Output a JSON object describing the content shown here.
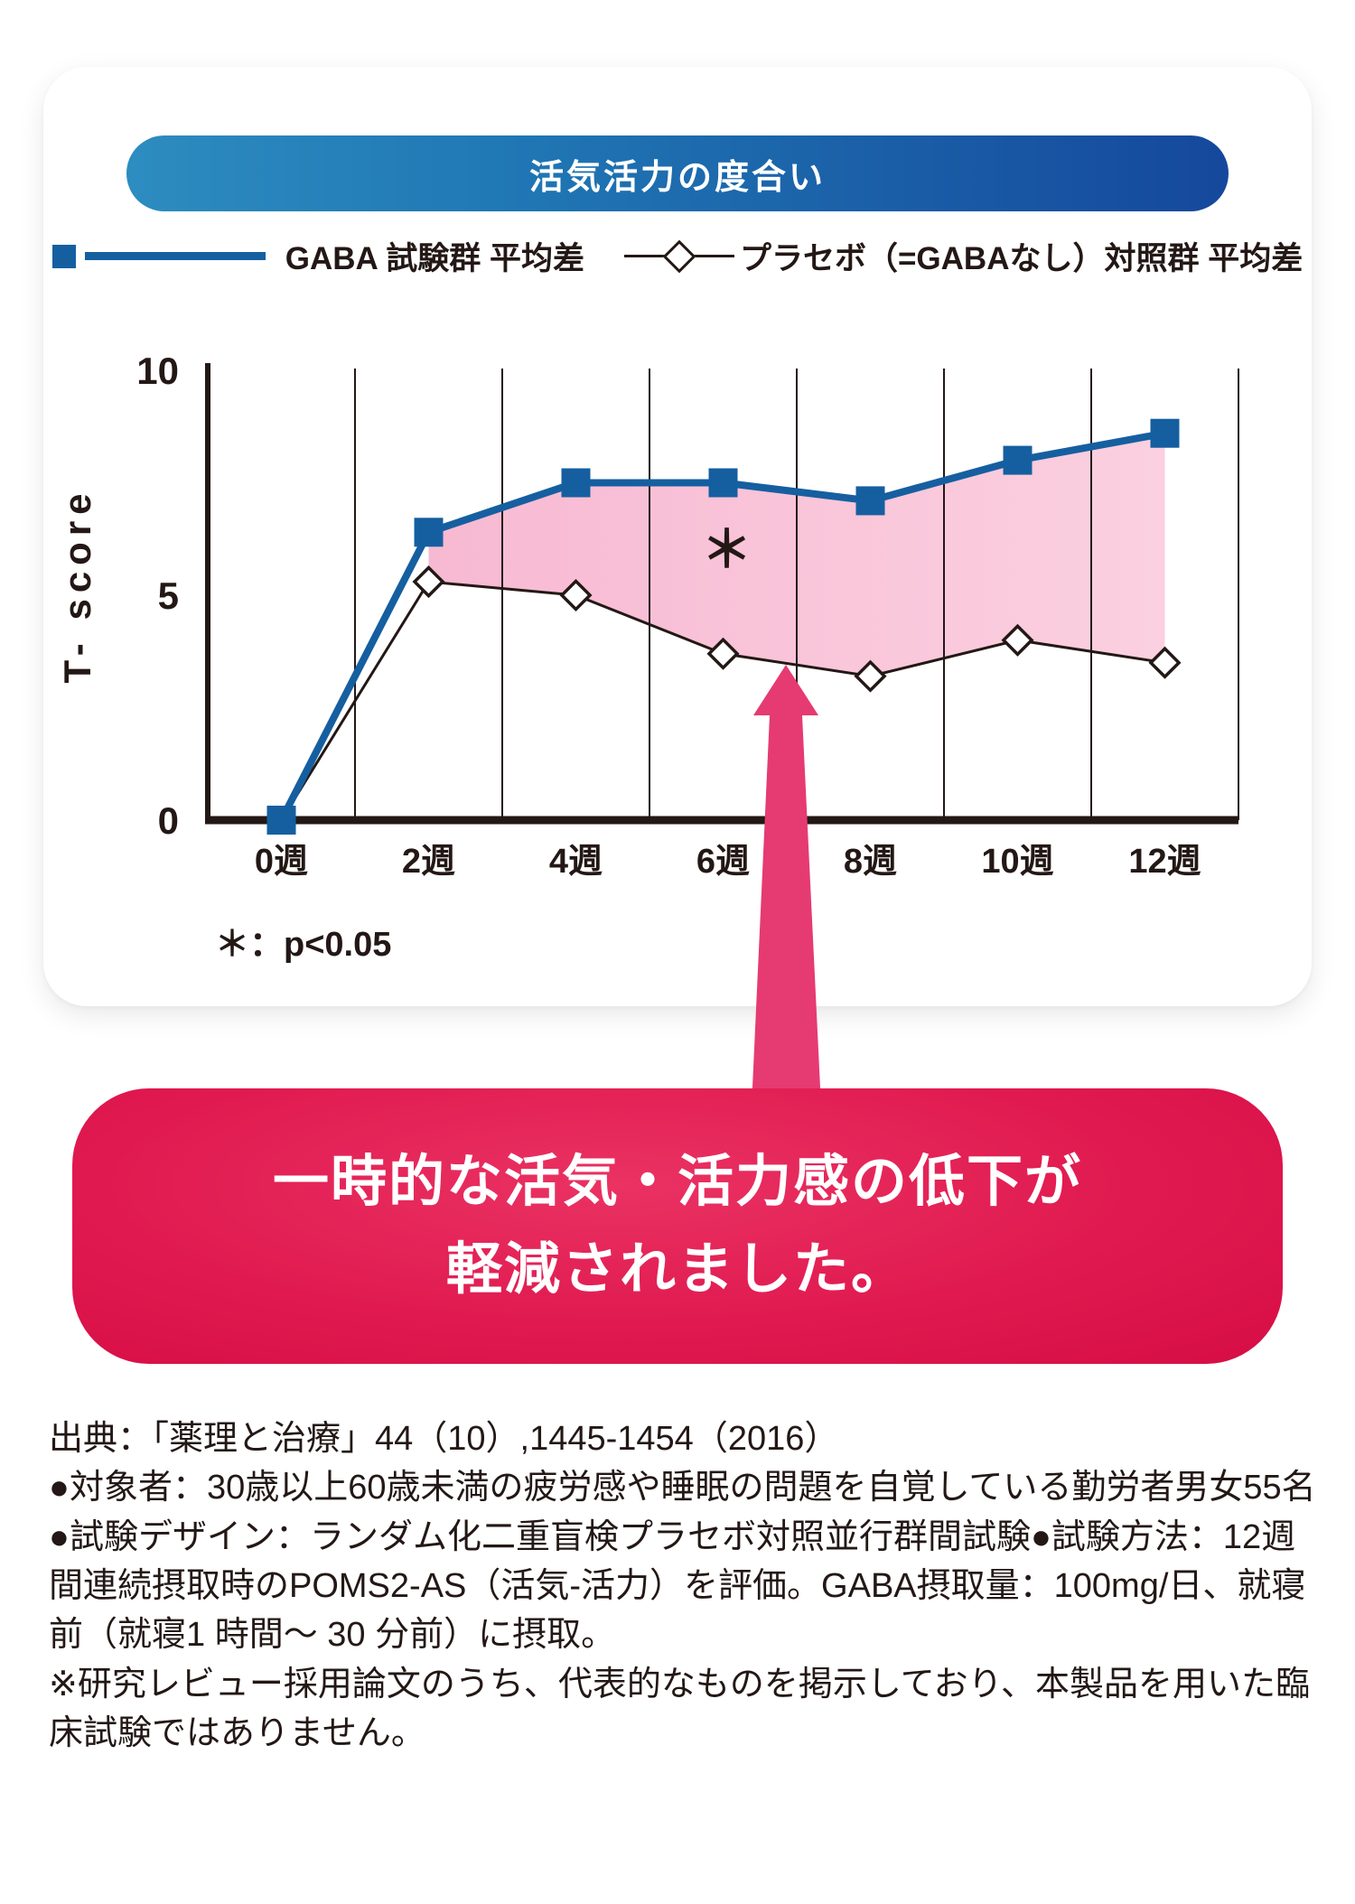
{
  "header": {
    "title": "活気活力の度合い"
  },
  "legend": {
    "series1_label": "GABA 試験群 平均差",
    "series2_label": "プラセボ（=GABAなし）対照群 平均差"
  },
  "chart_data": {
    "type": "line",
    "categories": [
      "0週",
      "2週",
      "4週",
      "6週",
      "8週",
      "10週",
      "12週"
    ],
    "series": [
      {
        "name": "GABA 試験群 平均差",
        "values": [
          0,
          6.4,
          7.5,
          7.5,
          7.1,
          8.0,
          8.6
        ],
        "color": "#155fa0",
        "marker": "square-filled"
      },
      {
        "name": "プラセボ（=GABAなし）対照群 平均差",
        "values": [
          0,
          5.3,
          5.0,
          3.7,
          3.2,
          4.0,
          3.5
        ],
        "color": "#231815",
        "marker": "diamond-open"
      }
    ],
    "ylabel": "T- score",
    "yticks": [
      0,
      5,
      10
    ],
    "ylim": [
      0,
      10
    ],
    "grid": "vertical-between-categories",
    "fill_between_series": true,
    "fill_color_start": "#f7b9d2",
    "fill_color_end": "#fbd0e0",
    "axis_color": "#231815",
    "annotation": {
      "symbol": "＊",
      "at_category": "6週",
      "meaning": "p<0.05"
    }
  },
  "pnote": "＊：p<0.05",
  "banner": {
    "line1": "一時的な活気・活力感の低下が",
    "line2": "軽減されました。"
  },
  "footnotes": {
    "source": "出典：「薬理と治療」44（10）,1445-1454（2016）",
    "method": "●対象者：30歳以上60歳未満の疲労感や睡眠の問題を自覚している勤労者男女55名●試験デザイン：ランダム化二重盲検プラセボ対照並行群間試験●試験方法：12週間連続摂取時のPOMS2-AS（活気-活力）を評価。GABA摂取量：100mg/日、就寝前（就寝1 時間～ 30 分前）に摂取。",
    "disclaimer": "※研究レビュー採用論文のうち、代表的なものを掲示しており、本製品を用いた臨床試験ではありません。"
  },
  "colors": {
    "pill_gradient_start": "#2d8cc0",
    "pill_gradient_end": "#15489c",
    "gaba_blue": "#155fa0",
    "placebo_line": "#231815",
    "fill_pink": "#f8c2d7",
    "arrow_pink": "#e63a72",
    "banner_red": "#d60d45",
    "text_dark": "#231815"
  }
}
